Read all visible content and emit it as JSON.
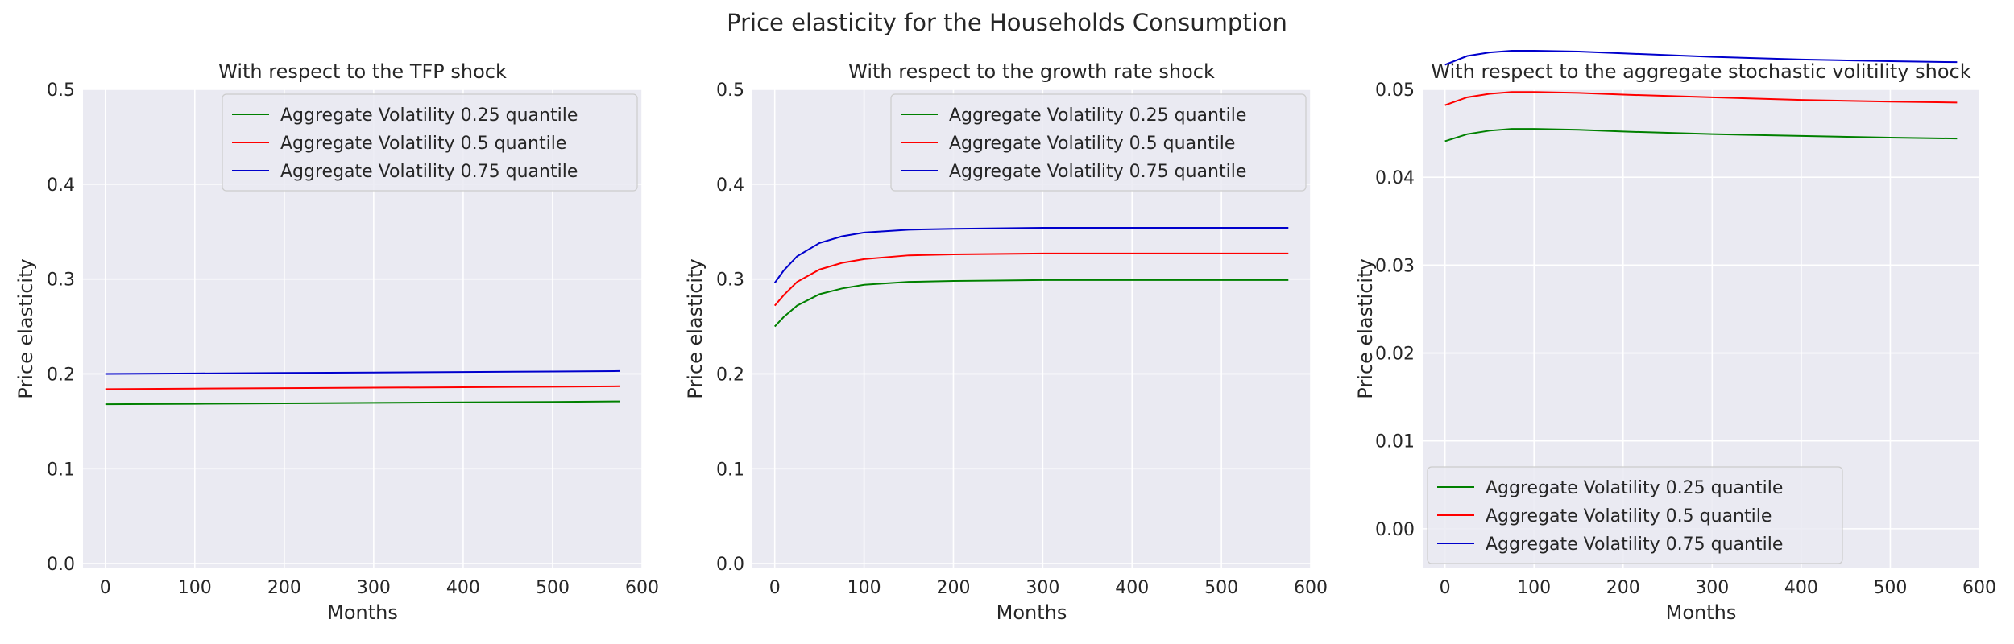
{
  "figure_title": "Price elasticity for the Households Consumption",
  "colors": {
    "background": "#EAEAF2",
    "grid": "#FFFFFF",
    "series": [
      "#008000",
      "#FF0000",
      "#0000CC"
    ]
  },
  "chart_data": [
    {
      "type": "line",
      "title": "With respect to the TFP shock",
      "xlabel": "Months",
      "ylabel": "Price elasticity",
      "xlim": [
        -25,
        600
      ],
      "ylim": [
        -0.005,
        0.5
      ],
      "xticks": [
        "0",
        "100",
        "200",
        "300",
        "400",
        "500",
        "600"
      ],
      "yticks": [
        "0.0",
        "0.1",
        "0.2",
        "0.3",
        "0.4",
        "0.5"
      ],
      "grid": true,
      "legend_position": "upper right",
      "x": [
        0,
        100,
        200,
        300,
        400,
        500,
        575
      ],
      "series": [
        {
          "name": "Aggregate Volatility 0.25 quantile",
          "color": "#008000",
          "values": [
            0.168,
            0.1685,
            0.169,
            0.1695,
            0.17,
            0.1705,
            0.171
          ]
        },
        {
          "name": "Aggregate Volatility 0.5 quantile",
          "color": "#FF0000",
          "values": [
            0.184,
            0.1845,
            0.185,
            0.1855,
            0.186,
            0.1865,
            0.187
          ]
        },
        {
          "name": "Aggregate Volatility 0.75 quantile",
          "color": "#0000CC",
          "values": [
            0.2,
            0.2005,
            0.201,
            0.2015,
            0.202,
            0.2025,
            0.203
          ]
        }
      ]
    },
    {
      "type": "line",
      "title": "With respect to the growth rate shock",
      "xlabel": "Months",
      "ylabel": "Price elasticity",
      "xlim": [
        -25,
        600
      ],
      "ylim": [
        -0.005,
        0.5
      ],
      "xticks": [
        "0",
        "100",
        "200",
        "300",
        "400",
        "500",
        "600"
      ],
      "yticks": [
        "0.0",
        "0.1",
        "0.2",
        "0.3",
        "0.4",
        "0.5"
      ],
      "grid": true,
      "legend_position": "upper right",
      "x": [
        0,
        10,
        25,
        50,
        75,
        100,
        150,
        200,
        300,
        400,
        500,
        575
      ],
      "series": [
        {
          "name": "Aggregate Volatility 0.25 quantile",
          "color": "#008000",
          "values": [
            0.25,
            0.26,
            0.272,
            0.284,
            0.29,
            0.294,
            0.297,
            0.298,
            0.299,
            0.299,
            0.299,
            0.299
          ]
        },
        {
          "name": "Aggregate Volatility 0.5 quantile",
          "color": "#FF0000",
          "values": [
            0.272,
            0.283,
            0.297,
            0.31,
            0.317,
            0.321,
            0.325,
            0.326,
            0.327,
            0.327,
            0.327,
            0.327
          ]
        },
        {
          "name": "Aggregate Volatility 0.75 quantile",
          "color": "#0000CC",
          "values": [
            0.296,
            0.309,
            0.324,
            0.338,
            0.345,
            0.349,
            0.352,
            0.353,
            0.354,
            0.354,
            0.354,
            0.354
          ]
        }
      ]
    },
    {
      "type": "line",
      "title": "With respect to the aggregate stochastic volitility shock",
      "xlabel": "Months",
      "ylabel": "Price elasticity",
      "xlim": [
        -25,
        600
      ],
      "ylim": [
        -0.0045,
        0.05
      ],
      "xticks": [
        "0",
        "100",
        "200",
        "300",
        "400",
        "500",
        "600"
      ],
      "yticks": [
        "0.00",
        "0.01",
        "0.02",
        "0.03",
        "0.04",
        "0.05"
      ],
      "grid": true,
      "legend_position": "lower left",
      "x": [
        0,
        25,
        50,
        75,
        100,
        150,
        200,
        300,
        400,
        500,
        575
      ],
      "series": [
        {
          "name": "Aggregate Volatility 0.25 quantile",
          "color": "#008000",
          "values": [
            0.0441,
            0.0449,
            0.0453,
            0.0455,
            0.0455,
            0.0454,
            0.0452,
            0.0449,
            0.0447,
            0.0445,
            0.0444
          ]
        },
        {
          "name": "Aggregate Volatility 0.5 quantile",
          "color": "#FF0000",
          "values": [
            0.0482,
            0.0491,
            0.0495,
            0.0497,
            0.0497,
            0.0496,
            0.0494,
            0.0491,
            0.0488,
            0.0486,
            0.0485
          ]
        },
        {
          "name": "Aggregate Volatility 0.75 quantile",
          "color": "#0000CC",
          "values": [
            0.0528,
            0.0538,
            0.0542,
            0.0544,
            0.0544,
            0.0543,
            0.0541,
            0.0537,
            0.0534,
            0.0532,
            0.0531
          ]
        }
      ]
    }
  ]
}
